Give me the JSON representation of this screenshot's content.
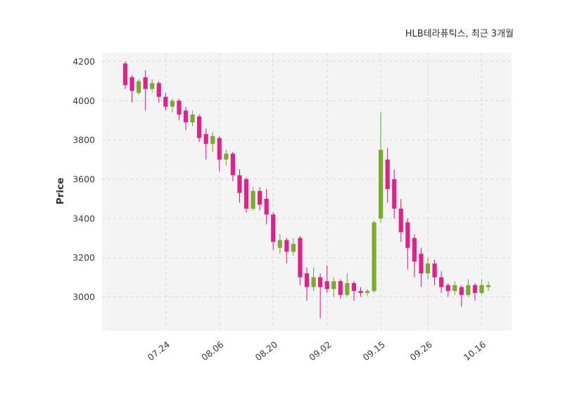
{
  "title": "HLB테라퓨틱스, 최근 3개월",
  "chart_data": {
    "type": "candlestick",
    "title": "HLB테라퓨틱스, 최근 3개월",
    "ylabel": "Price",
    "ylim": [
      2830,
      4245
    ],
    "y_ticks": [
      3000,
      3200,
      3400,
      3600,
      3800,
      4000,
      4200
    ],
    "x_tick_labels": [
      "07.24",
      "08.06",
      "08.20",
      "09.02",
      "09.15",
      "09.26",
      "10.16"
    ],
    "x_tick_indices": [
      6,
      14,
      22,
      30,
      38,
      45,
      53
    ],
    "legend": "none",
    "grid": "dashed",
    "up_color": "#7aab2e",
    "down_color": "#e0218a",
    "candles_ohlc": [
      [
        4190,
        4200,
        4060,
        4080
      ],
      [
        4120,
        4130,
        3990,
        4050
      ],
      [
        4040,
        4110,
        4030,
        4100
      ],
      [
        4120,
        4155,
        3950,
        4060
      ],
      [
        4060,
        4110,
        4040,
        4090
      ],
      [
        4090,
        4100,
        3990,
        4020
      ],
      [
        4020,
        4040,
        3950,
        3970
      ],
      [
        3970,
        4010,
        3940,
        4000
      ],
      [
        4000,
        4010,
        3900,
        3930
      ],
      [
        3950,
        3970,
        3850,
        3890
      ],
      [
        3890,
        3950,
        3870,
        3930
      ],
      [
        3920,
        3930,
        3790,
        3810
      ],
      [
        3830,
        3860,
        3700,
        3780
      ],
      [
        3780,
        3840,
        3740,
        3820
      ],
      [
        3810,
        3820,
        3640,
        3700
      ],
      [
        3700,
        3750,
        3670,
        3730
      ],
      [
        3730,
        3740,
        3590,
        3620
      ],
      [
        3620,
        3650,
        3480,
        3530
      ],
      [
        3600,
        3610,
        3430,
        3450
      ],
      [
        3450,
        3560,
        3440,
        3540
      ],
      [
        3540,
        3560,
        3440,
        3470
      ],
      [
        3500,
        3550,
        3370,
        3420
      ],
      [
        3420,
        3430,
        3240,
        3280
      ],
      [
        3250,
        3320,
        3220,
        3290
      ],
      [
        3290,
        3300,
        3170,
        3230
      ],
      [
        3230,
        3300,
        3210,
        3270
      ],
      [
        3300,
        3310,
        3060,
        3100
      ],
      [
        3120,
        3150,
        2980,
        3050
      ],
      [
        3050,
        3150,
        3030,
        3100
      ],
      [
        3100,
        3120,
        2890,
        3050
      ],
      [
        3080,
        3160,
        3020,
        3040
      ],
      [
        3040,
        3100,
        3000,
        3080
      ],
      [
        3080,
        3090,
        2990,
        3010
      ],
      [
        3010,
        3120,
        3000,
        3070
      ],
      [
        3070,
        3080,
        2980,
        3030
      ],
      [
        3030,
        3050,
        3000,
        3020
      ],
      [
        3020,
        3040,
        3005,
        3030
      ],
      [
        3030,
        3390,
        3020,
        3380
      ],
      [
        3400,
        3940,
        3380,
        3750
      ],
      [
        3700,
        3760,
        3480,
        3550
      ],
      [
        3600,
        3650,
        3400,
        3450
      ],
      [
        3450,
        3500,
        3280,
        3330
      ],
      [
        3380,
        3400,
        3140,
        3250
      ],
      [
        3300,
        3320,
        3100,
        3180
      ],
      [
        3220,
        3250,
        3050,
        3120
      ],
      [
        3120,
        3200,
        3090,
        3170
      ],
      [
        3170,
        3190,
        3060,
        3100
      ],
      [
        3100,
        3130,
        3020,
        3050
      ],
      [
        3060,
        3070,
        3000,
        3030
      ],
      [
        3030,
        3080,
        3010,
        3060
      ],
      [
        3050,
        3060,
        2950,
        3010
      ],
      [
        3010,
        3090,
        3000,
        3060
      ],
      [
        3060,
        3070,
        2980,
        3020
      ],
      [
        3020,
        3090,
        3010,
        3060
      ],
      [
        3050,
        3080,
        3030,
        3060
      ]
    ]
  },
  "style": {
    "plot_bg": "#f4f4f5",
    "grid_color": "#d9d9dc",
    "tick_color": "#3a3a44",
    "title_color": "#2f2f3d"
  }
}
